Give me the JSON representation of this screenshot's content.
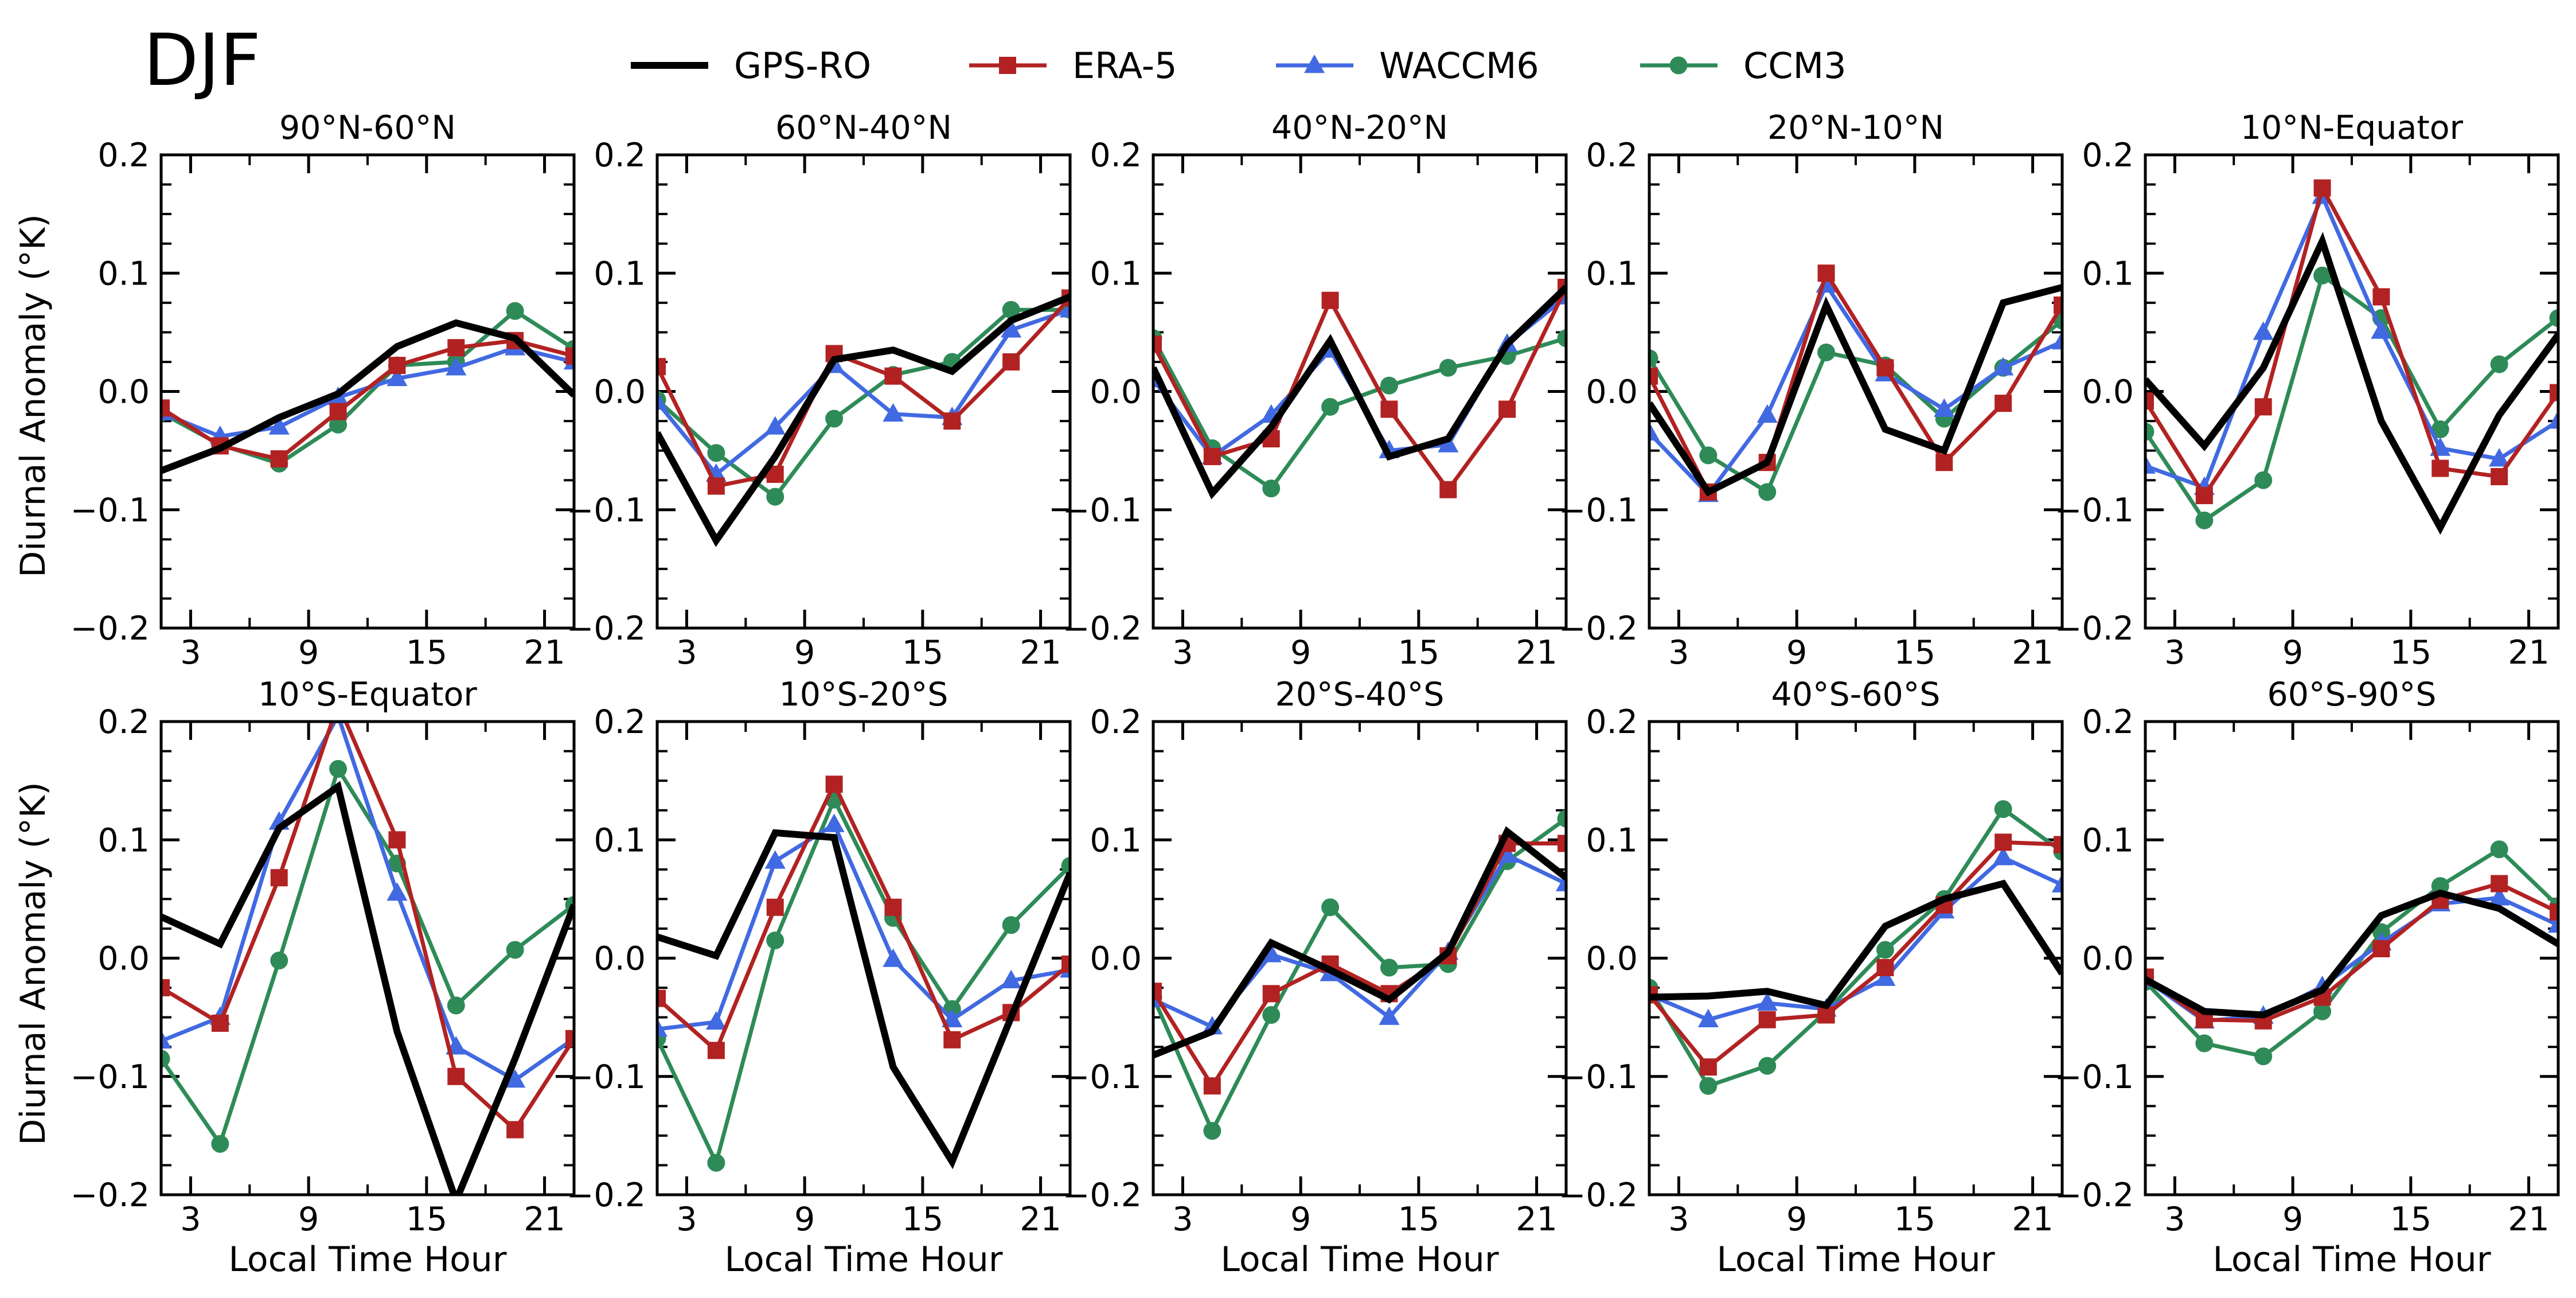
{
  "season": "DJF",
  "legend": [
    {
      "name": "GPS-RO",
      "color": "#000000",
      "marker": "none",
      "width": 12
    },
    {
      "name": "ERA-5",
      "color": "#b22222",
      "marker": "square",
      "width": 7
    },
    {
      "name": "WACCM6",
      "color": "#4169e1",
      "marker": "triangle",
      "width": 7
    },
    {
      "name": "CCM3",
      "color": "#2e8b57",
      "marker": "circle",
      "width": 7
    }
  ],
  "chart_data": {
    "type": "line",
    "xlabel": "Local Time Hour",
    "ylabel": "Diurnal Anomaly (°K)",
    "xlim": [
      1.5,
      22.5
    ],
    "ylim": [
      -0.2,
      0.2
    ],
    "xticks": [
      3,
      9,
      15,
      21
    ],
    "xtick_labels": [
      "3",
      "9",
      "15",
      "21"
    ],
    "yticks": [
      -0.2,
      -0.1,
      0.0,
      0.1,
      0.2
    ],
    "ytick_labels": [
      "−0.2",
      "−0.1",
      "0.0",
      "0.1",
      "0.2"
    ],
    "x": [
      1.5,
      4.5,
      7.5,
      10.5,
      13.5,
      16.5,
      19.5,
      22.5
    ],
    "panels": [
      {
        "title": "90°N-60°N",
        "series": [
          {
            "name": "GPS-RO",
            "values": [
              -0.067,
              -0.048,
              -0.022,
              -0.002,
              0.038,
              0.058,
              0.045,
              -0.003
            ]
          },
          {
            "name": "ERA-5",
            "values": [
              -0.014,
              -0.046,
              -0.057,
              -0.017,
              0.022,
              0.037,
              0.043,
              0.03
            ]
          },
          {
            "name": "WACCM6",
            "values": [
              -0.018,
              -0.038,
              -0.03,
              -0.005,
              0.011,
              0.02,
              0.037,
              0.025
            ]
          },
          {
            "name": "CCM3",
            "values": [
              -0.018,
              -0.045,
              -0.061,
              -0.028,
              0.022,
              0.025,
              0.068,
              0.036
            ]
          }
        ]
      },
      {
        "title": "60°N-40°N",
        "series": [
          {
            "name": "GPS-RO",
            "values": [
              -0.035,
              -0.126,
              -0.055,
              0.027,
              0.035,
              0.017,
              0.06,
              0.08
            ]
          },
          {
            "name": "ERA-5",
            "values": [
              0.021,
              -0.08,
              -0.07,
              0.032,
              0.013,
              -0.025,
              0.025,
              0.079
            ]
          },
          {
            "name": "WACCM6",
            "values": [
              -0.009,
              -0.07,
              -0.03,
              0.022,
              -0.019,
              -0.022,
              0.052,
              0.069
            ]
          },
          {
            "name": "CCM3",
            "values": [
              -0.007,
              -0.052,
              -0.089,
              -0.023,
              0.014,
              0.025,
              0.069,
              0.069
            ]
          }
        ]
      },
      {
        "title": "40°N-20°N",
        "series": [
          {
            "name": "GPS-RO",
            "values": [
              0.02,
              -0.086,
              -0.03,
              0.043,
              -0.055,
              -0.04,
              0.04,
              0.088
            ]
          },
          {
            "name": "ERA-5",
            "values": [
              0.04,
              -0.055,
              -0.04,
              0.077,
              -0.015,
              -0.083,
              -0.015,
              0.088
            ]
          },
          {
            "name": "WACCM6",
            "values": [
              0.01,
              -0.055,
              -0.02,
              0.035,
              -0.05,
              -0.045,
              0.04,
              0.08
            ]
          },
          {
            "name": "CCM3",
            "values": [
              0.045,
              -0.048,
              -0.082,
              -0.013,
              0.005,
              0.02,
              0.03,
              0.045
            ]
          }
        ]
      },
      {
        "title": "20°N-10°N",
        "series": [
          {
            "name": "GPS-RO",
            "values": [
              -0.01,
              -0.085,
              -0.06,
              0.073,
              -0.032,
              -0.05,
              0.075,
              0.088
            ]
          },
          {
            "name": "ERA-5",
            "values": [
              0.013,
              -0.085,
              -0.06,
              0.1,
              0.02,
              -0.06,
              -0.01,
              0.073
            ]
          },
          {
            "name": "WACCM6",
            "values": [
              -0.035,
              -0.087,
              -0.02,
              0.09,
              0.015,
              -0.015,
              0.02,
              0.042
            ]
          },
          {
            "name": "CCM3",
            "values": [
              0.028,
              -0.054,
              -0.085,
              0.033,
              0.022,
              -0.023,
              0.02,
              0.06
            ]
          }
        ]
      },
      {
        "title": "10°N-Equator",
        "series": [
          {
            "name": "GPS-RO",
            "values": [
              0.01,
              -0.046,
              0.02,
              0.127,
              -0.025,
              -0.115,
              -0.02,
              0.048
            ]
          },
          {
            "name": "ERA-5",
            "values": [
              -0.008,
              -0.088,
              -0.013,
              0.172,
              0.08,
              -0.065,
              -0.072,
              -0.001
            ]
          },
          {
            "name": "WACCM6",
            "values": [
              -0.063,
              -0.081,
              0.05,
              0.165,
              0.051,
              -0.048,
              -0.057,
              -0.025
            ]
          },
          {
            "name": "CCM3",
            "values": [
              -0.034,
              -0.109,
              -0.075,
              0.098,
              0.062,
              -0.032,
              0.023,
              0.062
            ]
          }
        ]
      },
      {
        "title": "10°S-Equator",
        "series": [
          {
            "name": "GPS-RO",
            "values": [
              0.035,
              0.012,
              0.11,
              0.145,
              -0.062,
              -0.205,
              -0.085,
              0.045
            ]
          },
          {
            "name": "ERA-5",
            "values": [
              -0.025,
              -0.055,
              0.068,
              0.215,
              0.1,
              -0.1,
              -0.145,
              -0.068
            ]
          },
          {
            "name": "WACCM6",
            "values": [
              -0.07,
              -0.05,
              0.115,
              0.205,
              0.055,
              -0.075,
              -0.103,
              -0.068
            ]
          },
          {
            "name": "CCM3",
            "values": [
              -0.085,
              -0.157,
              -0.002,
              0.16,
              0.08,
              -0.04,
              0.007,
              0.045
            ]
          }
        ]
      },
      {
        "title": "10°S-20°S",
        "series": [
          {
            "name": "GPS-RO",
            "values": [
              0.018,
              0.002,
              0.106,
              0.102,
              -0.092,
              -0.172,
              -0.05,
              0.072
            ]
          },
          {
            "name": "ERA-5",
            "values": [
              -0.034,
              -0.078,
              0.043,
              0.147,
              0.043,
              -0.069,
              -0.046,
              -0.005
            ]
          },
          {
            "name": "WACCM6",
            "values": [
              -0.06,
              -0.054,
              0.082,
              0.113,
              -0.001,
              -0.052,
              -0.019,
              -0.01
            ]
          },
          {
            "name": "CCM3",
            "values": [
              -0.068,
              -0.173,
              0.015,
              0.134,
              0.034,
              -0.043,
              0.028,
              0.078
            ]
          }
        ]
      },
      {
        "title": "20°S-40°S",
        "series": [
          {
            "name": "GPS-RO",
            "values": [
              -0.082,
              -0.062,
              0.013,
              -0.01,
              -0.035,
              0.005,
              0.107,
              0.068
            ]
          },
          {
            "name": "ERA-5",
            "values": [
              -0.028,
              -0.108,
              -0.03,
              -0.005,
              -0.03,
              0.002,
              0.097,
              0.097
            ]
          },
          {
            "name": "WACCM6",
            "values": [
              -0.035,
              -0.058,
              0.003,
              -0.013,
              -0.05,
              0.005,
              0.087,
              0.063
            ]
          },
          {
            "name": "CCM3",
            "values": [
              -0.033,
              -0.146,
              -0.048,
              0.043,
              -0.008,
              -0.005,
              0.082,
              0.118
            ]
          }
        ]
      },
      {
        "title": "40°S-60°S",
        "series": [
          {
            "name": "GPS-RO",
            "values": [
              -0.033,
              -0.032,
              -0.028,
              -0.04,
              0.027,
              0.05,
              0.063,
              -0.013
            ]
          },
          {
            "name": "ERA-5",
            "values": [
              -0.031,
              -0.092,
              -0.052,
              -0.048,
              -0.008,
              0.045,
              0.098,
              0.096
            ]
          },
          {
            "name": "WACCM6",
            "values": [
              -0.031,
              -0.052,
              -0.038,
              -0.043,
              -0.017,
              0.04,
              0.085,
              0.062
            ]
          },
          {
            "name": "CCM3",
            "values": [
              -0.025,
              -0.108,
              -0.091,
              -0.045,
              0.007,
              0.05,
              0.126,
              0.09
            ]
          }
        ]
      },
      {
        "title": "60°S-90°S",
        "series": [
          {
            "name": "GPS-RO",
            "values": [
              -0.018,
              -0.045,
              -0.048,
              -0.027,
              0.036,
              0.055,
              0.042,
              0.012
            ]
          },
          {
            "name": "ERA-5",
            "values": [
              -0.016,
              -0.052,
              -0.053,
              -0.033,
              0.008,
              0.049,
              0.063,
              0.039
            ]
          },
          {
            "name": "WACCM6",
            "values": [
              -0.018,
              -0.053,
              -0.049,
              -0.024,
              0.013,
              0.046,
              0.051,
              0.028
            ]
          },
          {
            "name": "CCM3",
            "values": [
              -0.02,
              -0.072,
              -0.083,
              -0.045,
              0.022,
              0.061,
              0.092,
              0.044
            ]
          }
        ]
      }
    ]
  }
}
